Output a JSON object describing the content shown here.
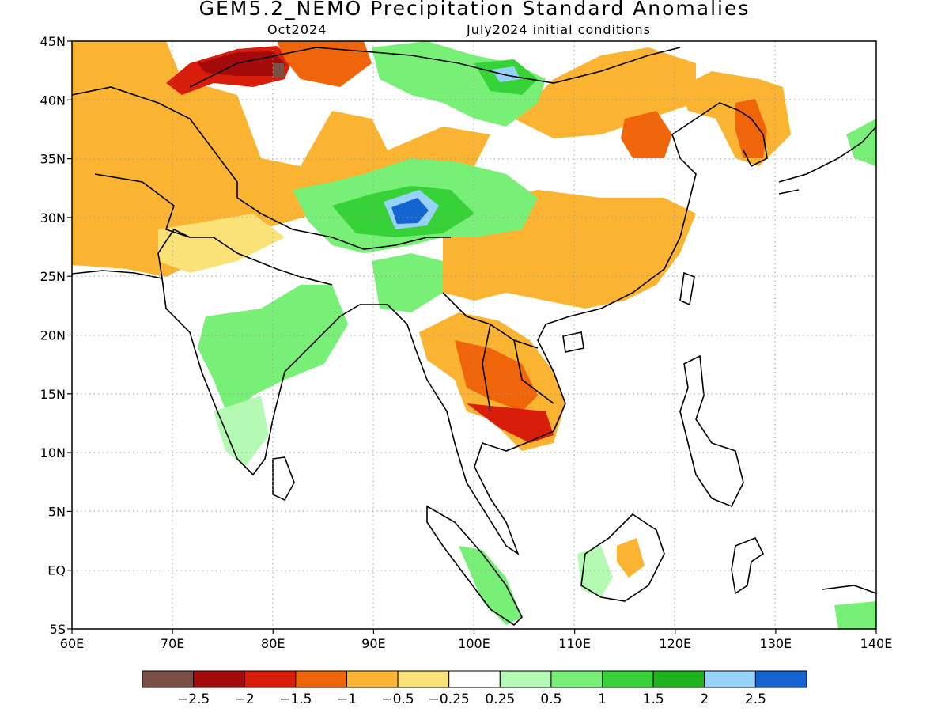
{
  "header": {
    "title": "GEM5.2_NEMO Precipitation Standard Anomalies",
    "period": "Oct2024",
    "init": "July2024 initial conditions"
  },
  "map": {
    "lon_range": [
      60,
      140
    ],
    "lat_range": [
      -5,
      45
    ],
    "lon_ticks": [
      "60E",
      "70E",
      "80E",
      "90E",
      "100E",
      "110E",
      "120E",
      "130E",
      "140E"
    ],
    "lat_ticks": [
      "45N",
      "40N",
      "35N",
      "30N",
      "25N",
      "20N",
      "15N",
      "10N",
      "5N",
      "EQ",
      "5S"
    ],
    "gridlines": "dotted",
    "field_color_key": {
      "strong_dry": "#7a5046",
      "very_dry": "#a50a0a",
      "dry": "#d81e0a",
      "moderately_dry": "#f0640a",
      "slightly_dry": "#fab432",
      "weak_dry": "#fae178",
      "neutral": "#ffffff",
      "weak_wet": "#b4fab4",
      "slightly_wet": "#78f078",
      "moderately_wet": "#37d237",
      "wet": "#1eb41e",
      "very_wet": "#96d2fa",
      "strong_wet": "#1464d2"
    }
  },
  "colorbar": {
    "bins": [
      "#7a5046",
      "#a50a0a",
      "#d81e0a",
      "#f0640a",
      "#fab432",
      "#fae178",
      "#ffffff",
      "#b4fab4",
      "#78f078",
      "#37d237",
      "#1eb41e",
      "#96d2fa",
      "#1464d2"
    ],
    "labels": [
      "−2.5",
      "−2",
      "−1.5",
      "−1",
      "−0.5",
      "−0.25",
      "0.25",
      "0.5",
      "1",
      "1.5",
      "2",
      "2.5"
    ]
  }
}
